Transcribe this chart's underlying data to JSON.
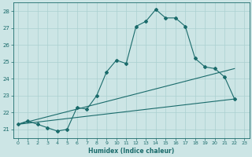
{
  "xlabel": "Humidex (Indice chaleur)",
  "bg_color": "#cce5e5",
  "grid_color": "#aad0d0",
  "line_color": "#1a6b6b",
  "xlim": [
    -0.5,
    23.5
  ],
  "ylim": [
    20.5,
    28.5
  ],
  "yticks": [
    21,
    22,
    23,
    24,
    25,
    26,
    27,
    28
  ],
  "xticks": [
    0,
    1,
    2,
    3,
    4,
    5,
    6,
    7,
    8,
    9,
    10,
    11,
    12,
    13,
    14,
    15,
    16,
    17,
    18,
    19,
    20,
    21,
    22,
    23
  ],
  "main_x": [
    0,
    1,
    2,
    3,
    4,
    5,
    6,
    7,
    8,
    9,
    10,
    11,
    12,
    13,
    14,
    15,
    16,
    17,
    18,
    19,
    20,
    21,
    22
  ],
  "main_y": [
    21.3,
    21.5,
    21.3,
    21.1,
    20.9,
    21.0,
    22.3,
    22.2,
    23.0,
    24.4,
    25.1,
    24.9,
    27.1,
    27.4,
    28.1,
    27.6,
    27.6,
    27.1,
    25.2,
    24.7,
    24.6,
    24.1,
    22.8
  ],
  "line1_x": [
    0,
    22
  ],
  "line1_y": [
    21.3,
    22.8
  ],
  "line2_x": [
    0,
    22
  ],
  "line2_y": [
    21.3,
    24.6
  ]
}
